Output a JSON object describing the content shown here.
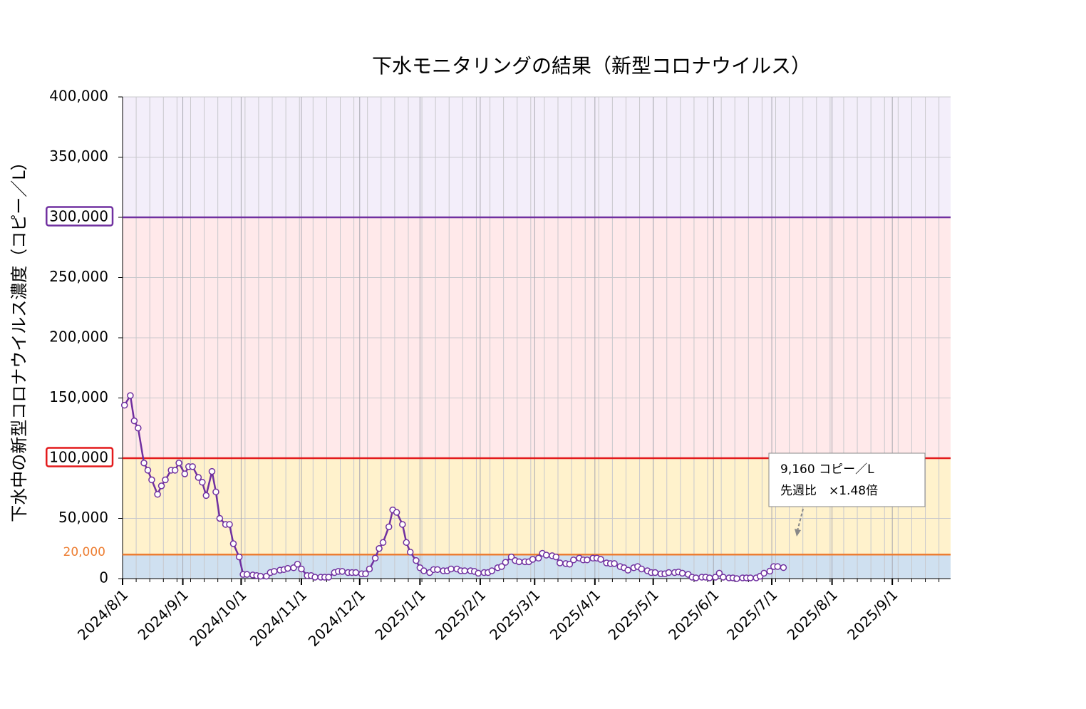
{
  "chart_data": {
    "type": "line",
    "title": "下水モニタリングの結果（新型コロナウイルス）",
    "y_label": "下水中の新型コロナウイルス濃度（コピー／L）",
    "color": "#7030a0",
    "marker_fill": "#ffffff",
    "xlim": [
      "2024/8/1",
      "2025/10/1"
    ],
    "xticks": [
      "2024/8/1",
      "2024/9/1",
      "2024/10/1",
      "2024/11/1",
      "2024/12/1",
      "2025/1/1",
      "2025/2/1",
      "2025/3/1",
      "2025/4/1",
      "2025/5/1",
      "2025/6/1",
      "2025/7/1",
      "2025/8/1",
      "2025/9/1"
    ],
    "ylim": [
      0,
      400000
    ],
    "yticks": [
      0,
      {
        "value": 50000,
        "label": "50,000"
      },
      {
        "value": 100000,
        "label": "100,000"
      },
      {
        "value": 150000,
        "label": "150,000"
      },
      {
        "value": 200000,
        "label": "200,000"
      },
      {
        "value": 250000,
        "label": "250,000"
      },
      {
        "value": 300000,
        "label": "300,000"
      },
      {
        "value": 350000,
        "label": "350,000"
      },
      {
        "value": 400000,
        "label": "400,000"
      }
    ],
    "grid": true,
    "bands": [
      {
        "from": 0,
        "to": 20000,
        "color": "#cfe0f0"
      },
      {
        "from": 20000,
        "to": 100000,
        "color": "#fff2cc"
      },
      {
        "from": 100000,
        "to": 300000,
        "color": "#ffe9ea"
      },
      {
        "from": 300000,
        "to": 400000,
        "color": "#f3eefa"
      }
    ],
    "thresholds": [
      {
        "value": 20000,
        "label": "20,000",
        "color": "#ed7d31"
      },
      {
        "value": 100000,
        "color": "#e31a1c"
      },
      {
        "value": 300000,
        "color": "#7030a0"
      }
    ],
    "x": [
      "2024/8/2",
      "2024/8/5",
      "2024/8/7",
      "2024/8/9",
      "2024/8/12",
      "2024/8/14",
      "2024/8/16",
      "2024/8/19",
      "2024/8/21",
      "2024/8/23",
      "2024/8/26",
      "2024/8/28",
      "2024/8/30",
      "2024/9/2",
      "2024/9/4",
      "2024/9/6",
      "2024/9/9",
      "2024/9/11",
      "2024/9/13",
      "2024/9/16",
      "2024/9/18",
      "2024/9/20",
      "2024/9/23",
      "2024/9/25",
      "2024/9/27",
      "2024/9/30",
      "2024/10/2",
      "2024/10/4",
      "2024/10/7",
      "2024/10/9",
      "2024/10/11",
      "2024/10/14",
      "2024/10/16",
      "2024/10/18",
      "2024/10/21",
      "2024/10/23",
      "2024/10/25",
      "2024/10/28",
      "2024/10/30",
      "2024/11/1",
      "2024/11/4",
      "2024/11/6",
      "2024/11/8",
      "2024/11/11",
      "2024/11/13",
      "2024/11/15",
      "2024/11/18",
      "2024/11/20",
      "2024/11/22",
      "2024/11/25",
      "2024/11/27",
      "2024/11/29",
      "2024/12/2",
      "2024/12/4",
      "2024/12/6",
      "2024/12/9",
      "2024/12/11",
      "2024/12/13",
      "2024/12/16",
      "2024/12/18",
      "2024/12/20",
      "2024/12/23",
      "2024/12/25",
      "2024/12/27",
      "2024/12/30",
      "2025/1/1",
      "2025/1/3",
      "2025/1/6",
      "2025/1/8",
      "2025/1/10",
      "2025/1/13",
      "2025/1/15",
      "2025/1/17",
      "2025/1/20",
      "2025/1/22",
      "2025/1/24",
      "2025/1/27",
      "2025/1/29",
      "2025/1/31",
      "2025/2/3",
      "2025/2/5",
      "2025/2/7",
      "2025/2/10",
      "2025/2/12",
      "2025/2/14",
      "2025/2/17",
      "2025/2/19",
      "2025/2/21",
      "2025/2/24",
      "2025/2/26",
      "2025/2/28",
      "2025/3/3",
      "2025/3/5",
      "2025/3/7",
      "2025/3/10",
      "2025/3/12",
      "2025/3/14",
      "2025/3/17",
      "2025/3/19",
      "2025/3/21",
      "2025/3/24",
      "2025/3/26",
      "2025/3/28",
      "2025/3/31",
      "2025/4/2",
      "2025/4/4",
      "2025/4/7",
      "2025/4/9",
      "2025/4/11",
      "2025/4/14",
      "2025/4/16",
      "2025/4/18",
      "2025/4/21",
      "2025/4/23",
      "2025/4/25",
      "2025/4/28",
      "2025/4/30",
      "2025/5/2",
      "2025/5/5",
      "2025/5/7",
      "2025/5/9",
      "2025/5/12",
      "2025/5/14",
      "2025/5/16",
      "2025/5/19",
      "2025/5/21",
      "2025/5/23",
      "2025/5/26",
      "2025/5/28",
      "2025/5/30",
      "2025/6/2",
      "2025/6/4",
      "2025/6/6",
      "2025/6/9",
      "2025/6/11",
      "2025/6/13",
      "2025/6/16",
      "2025/6/18",
      "2025/6/20",
      "2025/6/23",
      "2025/6/25",
      "2025/6/27",
      "2025/6/30",
      "2025/7/2",
      "2025/7/4",
      "2025/7/7"
    ],
    "values": [
      144000,
      152000,
      131000,
      125000,
      96000,
      90000,
      82000,
      70000,
      77000,
      82000,
      90000,
      90000,
      96000,
      87000,
      93000,
      93000,
      84000,
      80000,
      69000,
      89000,
      72000,
      50000,
      45000,
      45000,
      29000,
      18000,
      3500,
      3500,
      3000,
      2500,
      2000,
      2000,
      5000,
      6000,
      7000,
      7500,
      8500,
      9000,
      12000,
      8000,
      2500,
      2500,
      1200,
      1200,
      1200,
      1200,
      5000,
      6000,
      6000,
      5000,
      5000,
      5000,
      4000,
      4000,
      8000,
      17000,
      25000,
      30000,
      43000,
      57000,
      55000,
      45000,
      30000,
      22000,
      15000,
      9000,
      6500,
      5000,
      7500,
      7500,
      6500,
      6500,
      8000,
      8000,
      6500,
      6500,
      6500,
      6000,
      4500,
      5000,
      5000,
      6500,
      9000,
      10000,
      13500,
      18000,
      15000,
      14000,
      14000,
      14000,
      16000,
      17000,
      21000,
      19500,
      19000,
      18000,
      13000,
      12500,
      12000,
      15500,
      17000,
      15500,
      15500,
      17000,
      17000,
      16000,
      13000,
      12500,
      12500,
      10000,
      9000,
      7000,
      9000,
      10000,
      8000,
      6500,
      5000,
      5000,
      4000,
      4000,
      5000,
      5000,
      5500,
      4500,
      3500,
      1200,
      600,
      1200,
      1200,
      600,
      1200,
      4500,
      1200,
      600,
      600,
      0,
      600,
      600,
      600,
      600,
      2000,
      4500,
      6200,
      10000,
      10000,
      9160
    ],
    "annotation": [
      "9,160 コピー／L",
      "先週比　×1.48倍"
    ]
  }
}
